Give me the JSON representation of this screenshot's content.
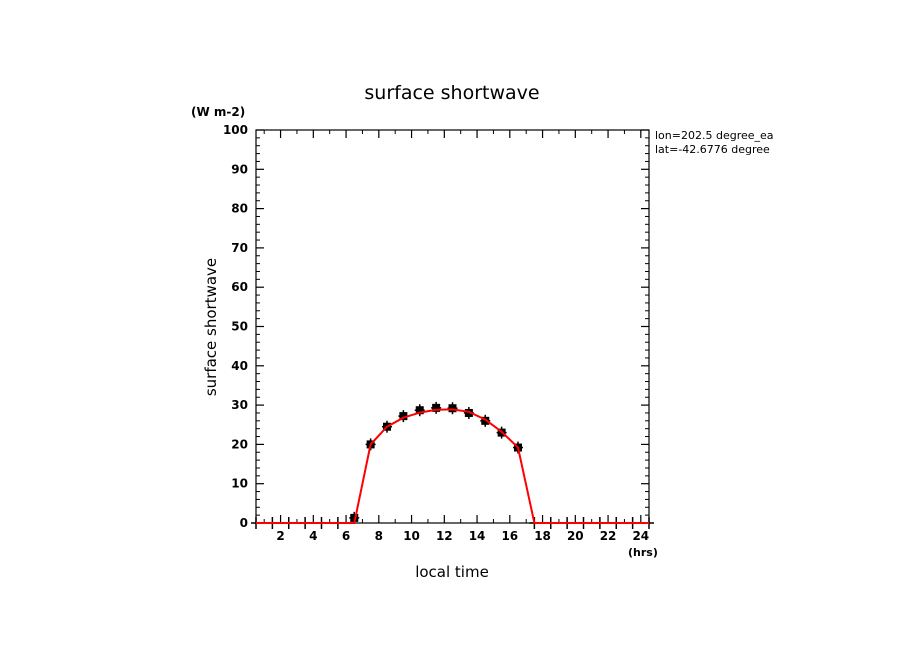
{
  "chart_data": {
    "type": "line",
    "title": "surface shortwave",
    "units": "(W m-2)",
    "ylabel": "surface shortwave",
    "xlabel": "local time",
    "xunits": "(hrs)",
    "annotations": [
      "lon=202.5 degree_ea",
      "lat=-42.6776 degree"
    ],
    "xlim": [
      0.5,
      24.5
    ],
    "ylim": [
      0,
      100
    ],
    "xticks": [
      2,
      4,
      6,
      8,
      10,
      12,
      14,
      16,
      18,
      20,
      22,
      24
    ],
    "yticks": [
      0,
      10,
      20,
      30,
      40,
      50,
      60,
      70,
      80,
      90,
      100
    ],
    "grid": false,
    "series": [
      {
        "role": "observed-markers",
        "color": "#000000",
        "marker": "plus-square",
        "x": [
          0.5,
          1.5,
          2.5,
          3.5,
          4.5,
          5.5,
          6.5,
          7.5,
          8.5,
          9.5,
          10.5,
          11.5,
          12.5,
          13.5,
          14.5,
          15.5,
          16.5,
          17.5,
          18.5,
          19.5,
          20.5,
          21.5,
          22.5,
          23.5,
          24.5
        ],
        "y": [
          0,
          0,
          0,
          0,
          0,
          0,
          1.3,
          20,
          24.5,
          27.2,
          28.7,
          29.3,
          29.2,
          28,
          26,
          23,
          19.2,
          0,
          0,
          0,
          0,
          0,
          0,
          0,
          0
        ]
      },
      {
        "role": "fitted-line",
        "color": "#ff0000",
        "x": [
          0.5,
          6.5,
          7.5,
          8.5,
          9.5,
          10.5,
          11.5,
          12.5,
          13.5,
          14.5,
          15.5,
          16.5,
          17.5,
          24.5
        ],
        "y": [
          0,
          0,
          20,
          24.5,
          26.8,
          28.1,
          28.8,
          28.9,
          28.3,
          26.3,
          23.2,
          19.2,
          0,
          0
        ]
      }
    ]
  }
}
